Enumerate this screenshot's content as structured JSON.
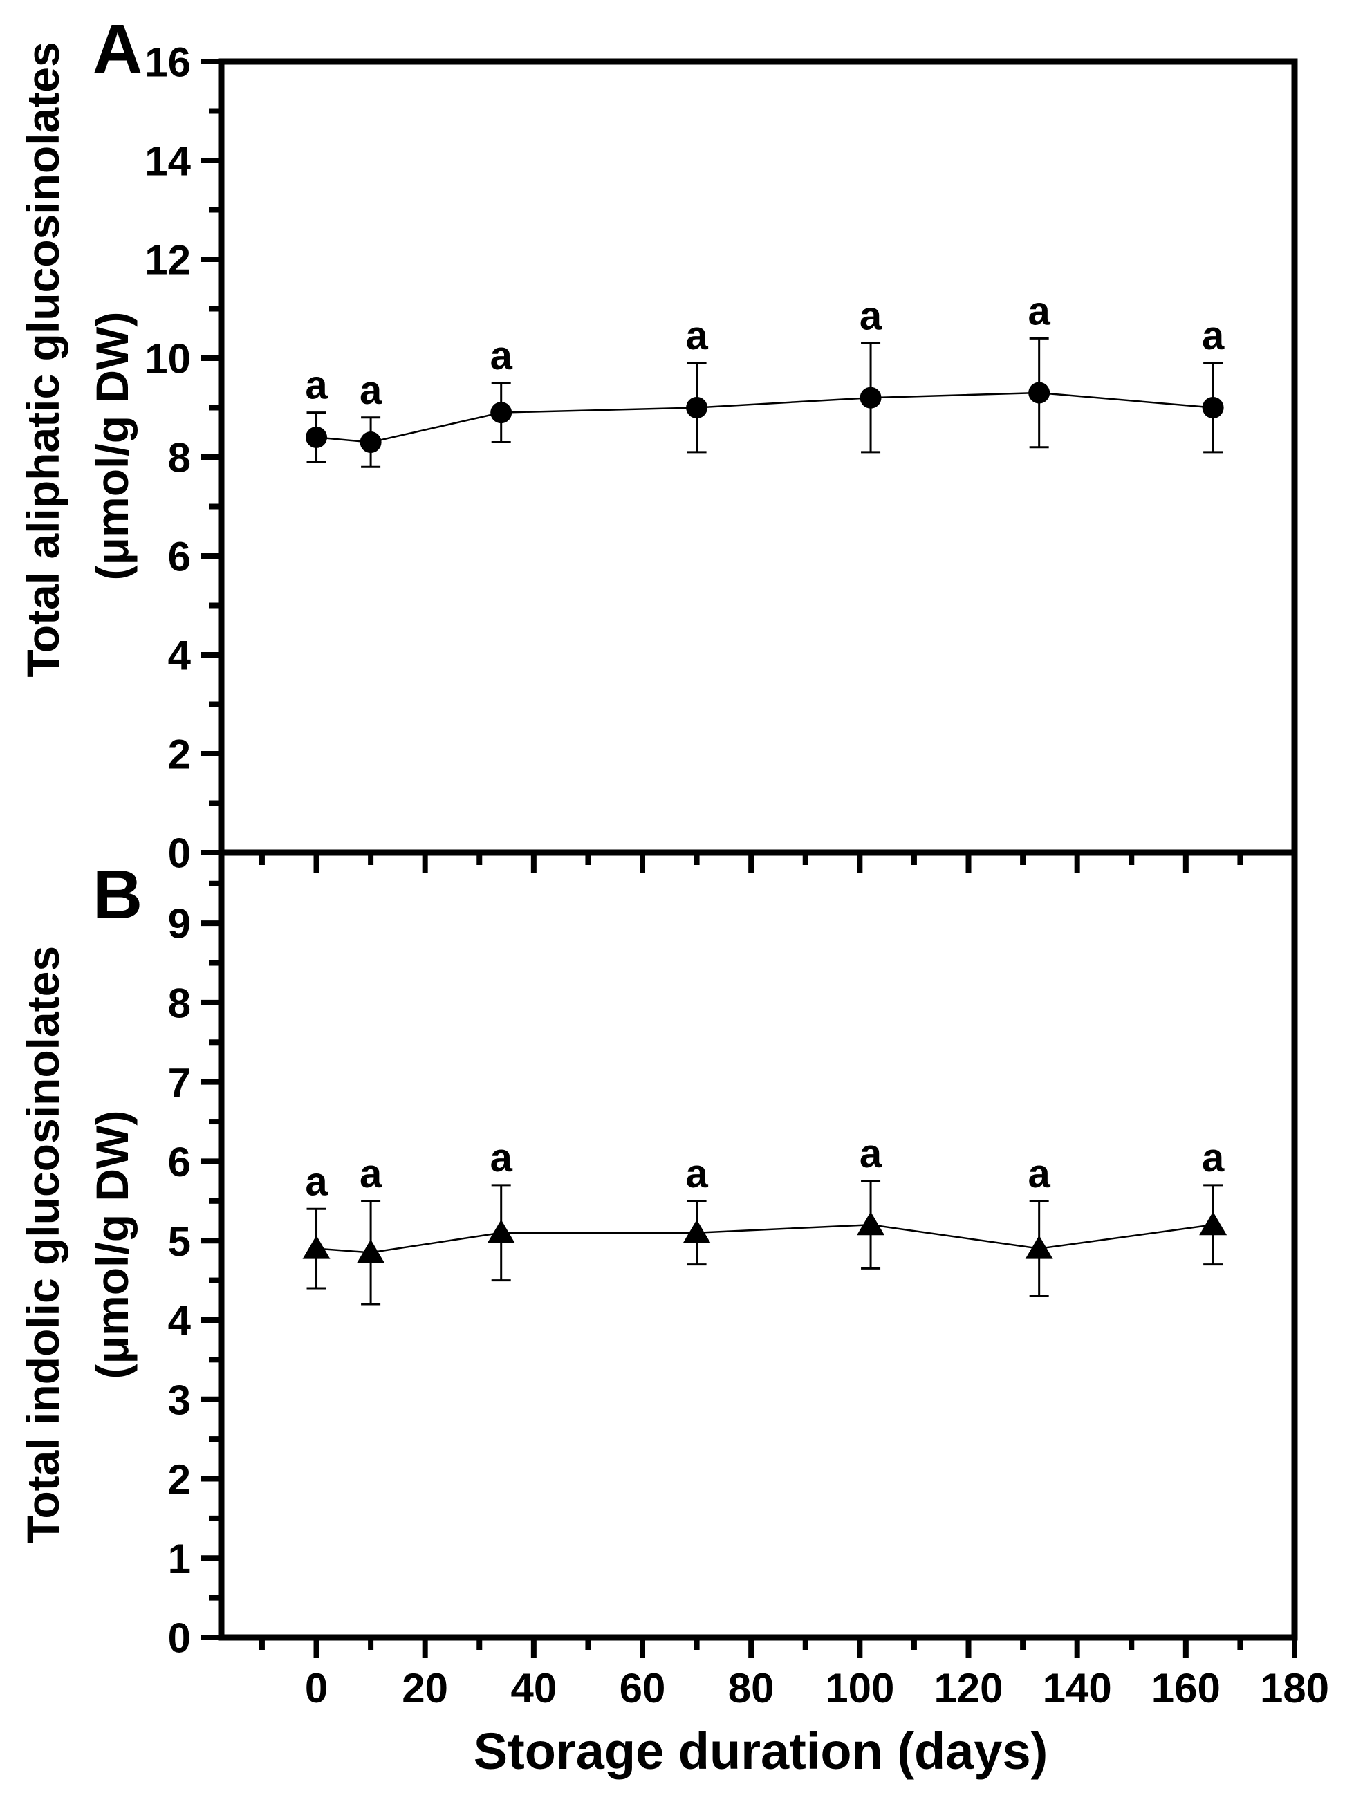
{
  "figure": {
    "background": "#ffffff",
    "ink_color": "#000000",
    "xlabel": "Storage duration (days)",
    "panels": [
      {
        "letter": "A",
        "ylabel_line1": "Total aliphatic glucosinolates",
        "ylabel_line2": "(μmol/g DW)"
      },
      {
        "letter": "B",
        "ylabel_line1": "Total indolic glucosinolates",
        "ylabel_line2": "(μmol/g DW)"
      }
    ]
  },
  "chart_data": [
    {
      "type": "line",
      "panel": "A",
      "marker": "circle",
      "title": "",
      "xlabel": "",
      "ylabel": "Total aliphatic glucosinolates (μmol/g DW)",
      "x": [
        0,
        10,
        34,
        70,
        102,
        133,
        165
      ],
      "values": [
        8.4,
        8.3,
        8.9,
        9.0,
        9.2,
        9.3,
        9.0
      ],
      "errors": [
        0.5,
        0.5,
        0.6,
        0.9,
        1.1,
        1.1,
        0.9
      ],
      "point_labels": [
        "a",
        "a",
        "a",
        "a",
        "a",
        "a",
        "a"
      ],
      "ylim": [
        0,
        16
      ],
      "yticks_major": [
        0,
        2,
        4,
        6,
        8,
        10,
        12,
        14,
        16
      ],
      "yticks_minor": [
        1,
        3,
        5,
        7,
        9,
        11,
        13,
        15
      ],
      "xlim": [
        -17.5,
        180
      ],
      "xticks_major": [
        0,
        20,
        40,
        60,
        80,
        100,
        120,
        140,
        160,
        180
      ],
      "xticks_minor": [
        -10,
        10,
        30,
        50,
        70,
        90,
        110,
        130,
        150,
        170
      ],
      "grid": false,
      "legend": "none"
    },
    {
      "type": "line",
      "panel": "B",
      "marker": "triangle-up",
      "title": "",
      "xlabel": "Storage duration (days)",
      "ylabel": "Total indolic glucosinolates (μmol/g DW)",
      "x": [
        0,
        10,
        34,
        70,
        102,
        133,
        165
      ],
      "values": [
        4.9,
        4.85,
        5.1,
        5.1,
        5.2,
        4.9,
        5.2
      ],
      "errors": [
        0.5,
        0.65,
        0.6,
        0.4,
        0.55,
        0.6,
        0.5
      ],
      "point_labels": [
        "a",
        "a",
        "a",
        "a",
        "a",
        "a",
        "a"
      ],
      "ylim": [
        0,
        9.89
      ],
      "yticks_major": [
        0,
        1,
        2,
        3,
        4,
        5,
        6,
        7,
        8,
        9
      ],
      "yticks_minor": [
        0.5,
        1.5,
        2.5,
        3.5,
        4.5,
        5.5,
        6.5,
        7.5,
        8.5,
        9.5
      ],
      "xlim": [
        -17.5,
        180
      ],
      "xticks_major": [
        0,
        20,
        40,
        60,
        80,
        100,
        120,
        140,
        160,
        180
      ],
      "xticks_minor": [
        -10,
        10,
        30,
        50,
        70,
        90,
        110,
        130,
        150,
        170
      ],
      "grid": false,
      "legend": "none"
    }
  ]
}
